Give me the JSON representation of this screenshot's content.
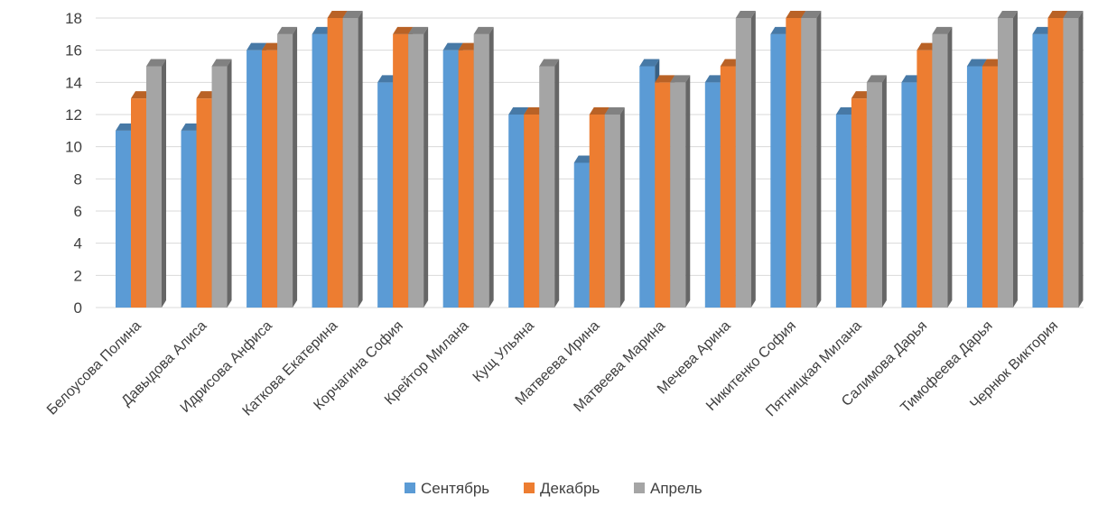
{
  "chart_data": {
    "type": "bar",
    "three_d": true,
    "categories": [
      "Белоусова Полина",
      "Давыдова Алиса",
      "Идрисова Анфиса",
      "Каткова Екатерина",
      "Корчагина София",
      "Крейтор Милана",
      "Кущ Ульяна",
      "Матвеева Ирина",
      "Матвеева Марина",
      "Мечева Арина",
      "Никитенко София",
      "Пятницкая Милана",
      "Салимова Дарья",
      "Тимофеева Дарья",
      "Чернюк Виктория"
    ],
    "series": [
      {
        "name": "Сентябрь",
        "color": "#5b9bd5",
        "values": [
          11,
          11,
          16,
          17,
          14,
          16,
          12,
          9,
          15,
          14,
          17,
          12,
          14,
          15,
          17
        ]
      },
      {
        "name": "Декабрь",
        "color": "#ed7d31",
        "values": [
          13,
          13,
          16,
          18,
          17,
          16,
          12,
          12,
          14,
          15,
          18,
          13,
          16,
          15,
          18
        ]
      },
      {
        "name": "Апрель",
        "color": "#a5a5a5",
        "values": [
          15,
          15,
          17,
          18,
          17,
          17,
          15,
          12,
          14,
          18,
          18,
          14,
          17,
          18,
          18
        ]
      }
    ],
    "title": "",
    "xlabel": "",
    "ylabel": "",
    "ylim": [
      0,
      18
    ],
    "yticks": [
      0,
      2,
      4,
      6,
      8,
      10,
      12,
      14,
      16,
      18
    ],
    "ytick_labels": [
      "0",
      "2",
      "4",
      "6",
      "8",
      "10",
      "12",
      "14",
      "16",
      "18"
    ],
    "grid": true,
    "legend_position": "bottom"
  }
}
